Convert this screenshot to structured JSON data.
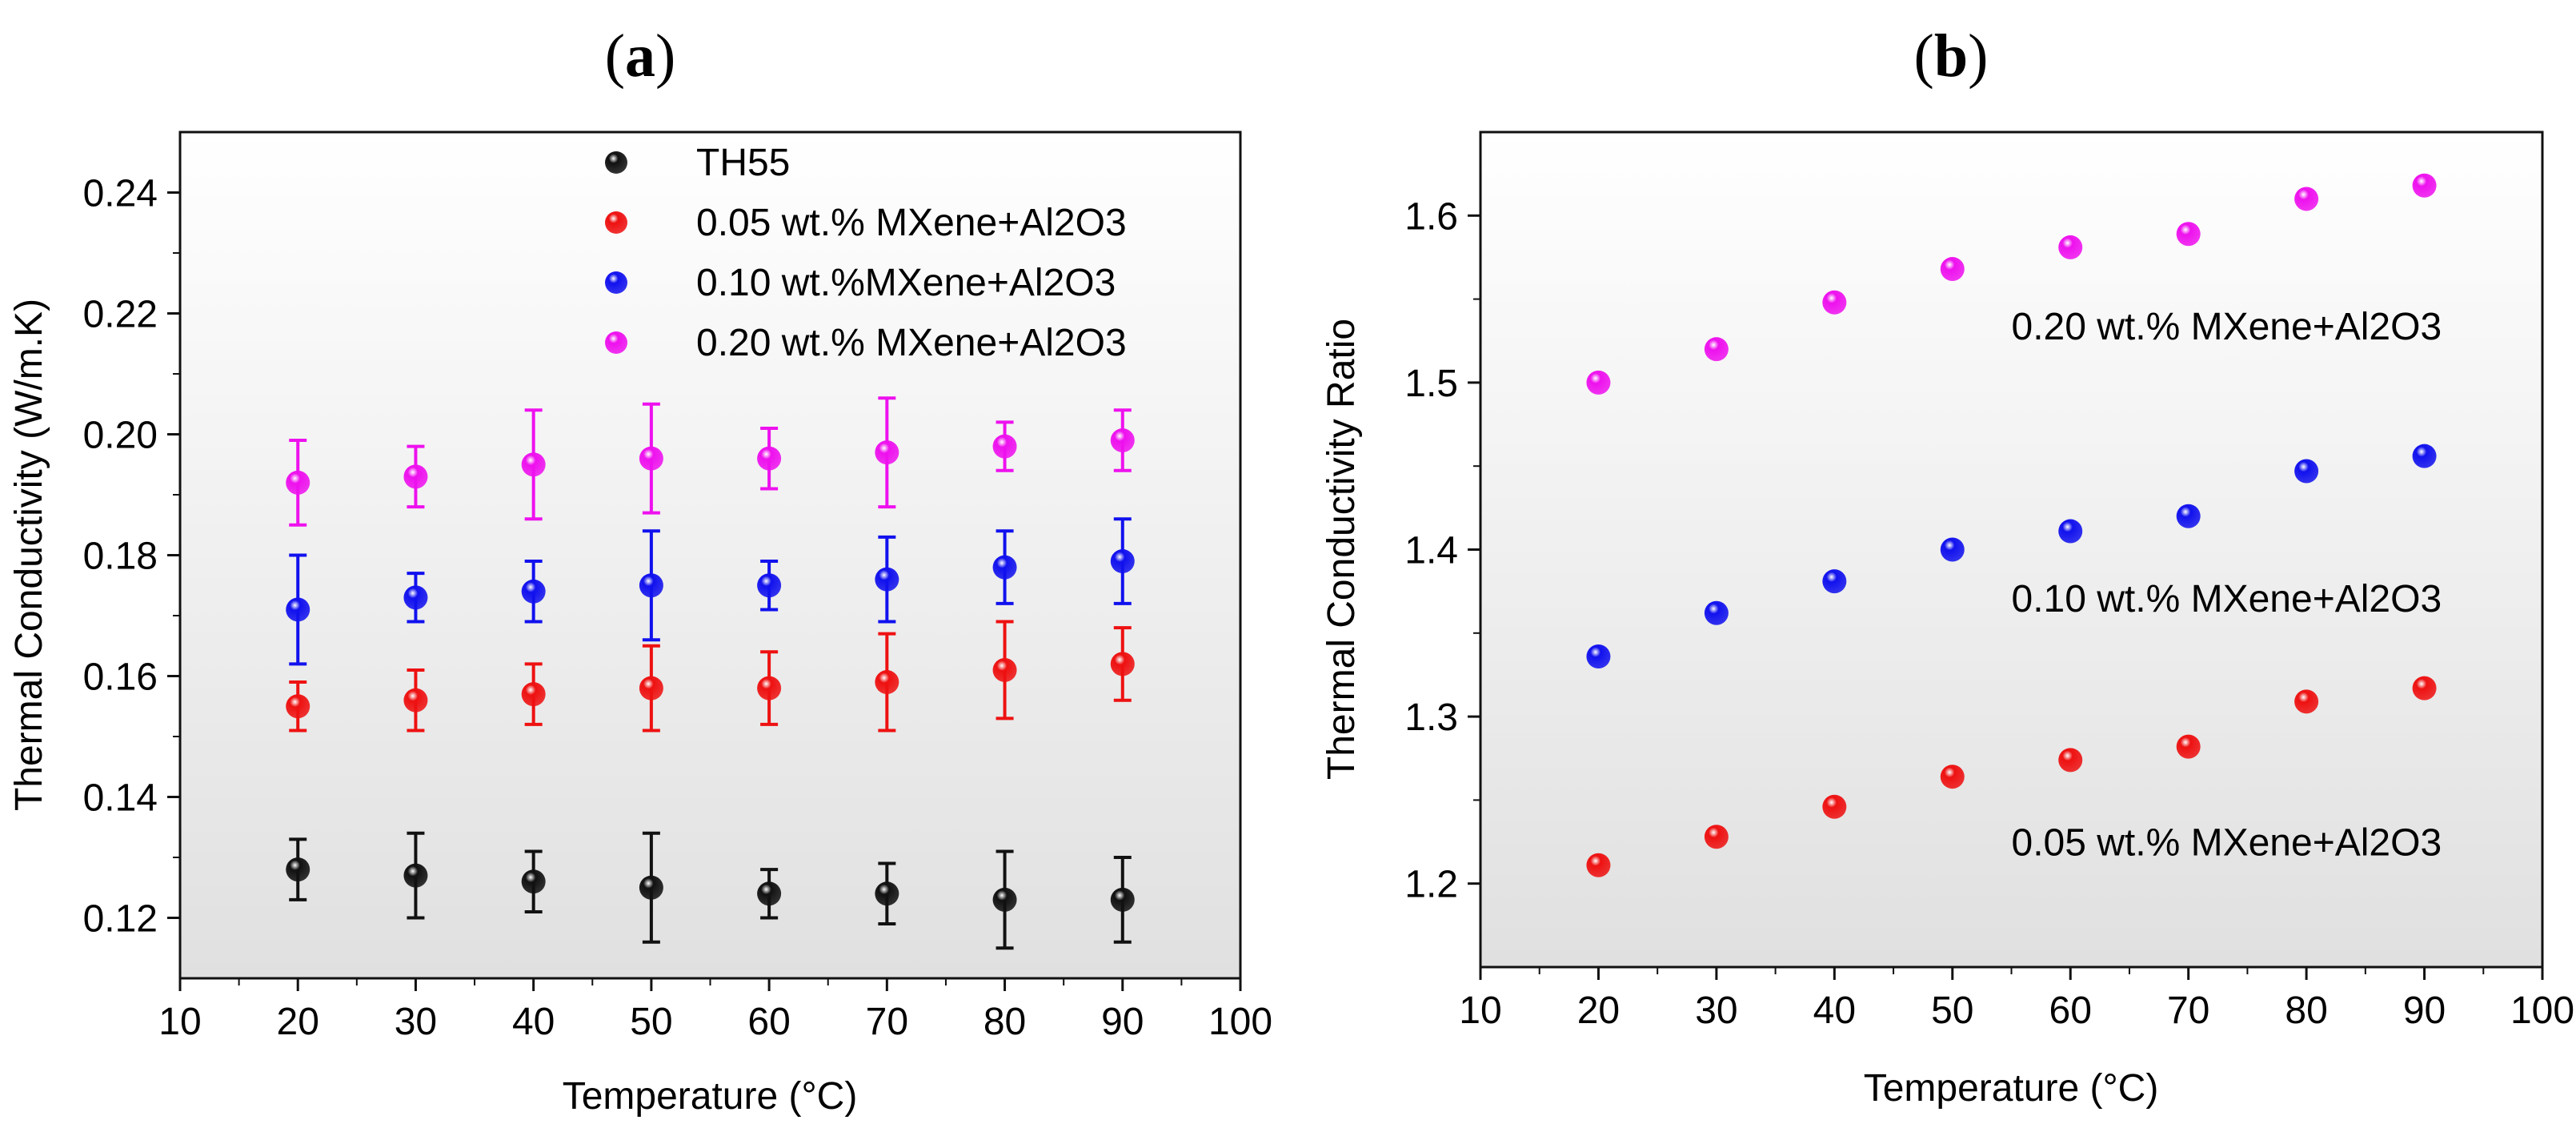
{
  "chart_data": [
    {
      "panel": "(a)",
      "type": "scatter",
      "title": "(a)",
      "xlabel": "Temperature (°C)",
      "ylabel": "Thermal Conductivity (W/m.K)",
      "xlim": [
        10,
        100
      ],
      "ylim": [
        0.11,
        0.25
      ],
      "xticks": [
        10,
        20,
        30,
        40,
        50,
        60,
        70,
        80,
        90,
        100
      ],
      "yticks": [
        0.12,
        0.14,
        0.16,
        0.18,
        0.2,
        0.22,
        0.24
      ],
      "xtick_labels": [
        "10",
        "20",
        "30",
        "40",
        "50",
        "60",
        "70",
        "80",
        "90",
        "100"
      ],
      "ytick_labels": [
        "0.12",
        "0.14",
        "0.16",
        "0.18",
        "0.20",
        "0.22",
        "0.24"
      ],
      "legend_position": "top-right",
      "x": [
        20,
        30,
        40,
        50,
        60,
        70,
        80,
        90
      ],
      "series": [
        {
          "name": "TH55",
          "color": "#111111",
          "values": [
            0.128,
            0.127,
            0.126,
            0.125,
            0.124,
            0.124,
            0.123,
            0.123
          ],
          "err_low": [
            0.123,
            0.12,
            0.121,
            0.116,
            0.12,
            0.119,
            0.115,
            0.116
          ],
          "err_high": [
            0.133,
            0.134,
            0.131,
            0.134,
            0.128,
            0.129,
            0.131,
            0.13
          ]
        },
        {
          "name": "0.05 wt.% MXene+Al2O3",
          "color": "#ee1111",
          "values": [
            0.155,
            0.156,
            0.157,
            0.158,
            0.158,
            0.159,
            0.161,
            0.162
          ],
          "err_low": [
            0.151,
            0.151,
            0.152,
            0.151,
            0.152,
            0.151,
            0.153,
            0.156
          ],
          "err_high": [
            0.159,
            0.161,
            0.162,
            0.165,
            0.164,
            0.167,
            0.169,
            0.168
          ]
        },
        {
          "name": "0.10 wt.%MXene+Al2O3",
          "color": "#1111ee",
          "values": [
            0.171,
            0.173,
            0.174,
            0.175,
            0.175,
            0.176,
            0.178,
            0.179
          ],
          "err_low": [
            0.162,
            0.169,
            0.169,
            0.166,
            0.171,
            0.169,
            0.172,
            0.172
          ],
          "err_high": [
            0.18,
            0.177,
            0.179,
            0.184,
            0.179,
            0.183,
            0.184,
            0.186
          ]
        },
        {
          "name": "0.20 wt.% MXene+Al2O3",
          "color": "#ee11ee",
          "values": [
            0.192,
            0.193,
            0.195,
            0.196,
            0.196,
            0.197,
            0.198,
            0.199
          ],
          "err_low": [
            0.185,
            0.188,
            0.186,
            0.187,
            0.191,
            0.188,
            0.194,
            0.194
          ],
          "err_high": [
            0.199,
            0.198,
            0.204,
            0.205,
            0.201,
            0.206,
            0.202,
            0.204
          ]
        }
      ]
    },
    {
      "panel": "(b)",
      "type": "scatter",
      "title": "(b)",
      "xlabel": "Temperature (°C)",
      "ylabel": "Thermal Conductivity Ratio",
      "xlim": [
        10,
        100
      ],
      "ylim": [
        1.15,
        1.65
      ],
      "xticks": [
        10,
        20,
        30,
        40,
        50,
        60,
        70,
        80,
        90,
        100
      ],
      "yticks": [
        1.2,
        1.3,
        1.4,
        1.5,
        1.6
      ],
      "xtick_labels": [
        "10",
        "20",
        "30",
        "40",
        "50",
        "60",
        "70",
        "80",
        "90",
        "100"
      ],
      "ytick_labels": [
        "1.2",
        "1.3",
        "1.4",
        "1.5",
        "1.6"
      ],
      "x": [
        20,
        30,
        40,
        50,
        60,
        70,
        80,
        90
      ],
      "series": [
        {
          "name": "0.20 wt.% MXene+Al2O3",
          "color": "#ee11ee",
          "values": [
            1.5,
            1.52,
            1.548,
            1.568,
            1.581,
            1.589,
            1.61,
            1.618
          ],
          "label_at": [
            55,
            1.534
          ]
        },
        {
          "name": "0.10 wt.% MXene+Al2O3",
          "color": "#1111ee",
          "values": [
            1.336,
            1.362,
            1.381,
            1.4,
            1.411,
            1.42,
            1.447,
            1.456
          ],
          "label_at": [
            55,
            1.371
          ]
        },
        {
          "name": "0.05 wt.% MXene+Al2O3",
          "color": "#ee1111",
          "values": [
            1.211,
            1.228,
            1.246,
            1.264,
            1.274,
            1.282,
            1.309,
            1.317
          ],
          "label_at": [
            55,
            1.225
          ]
        }
      ]
    }
  ]
}
